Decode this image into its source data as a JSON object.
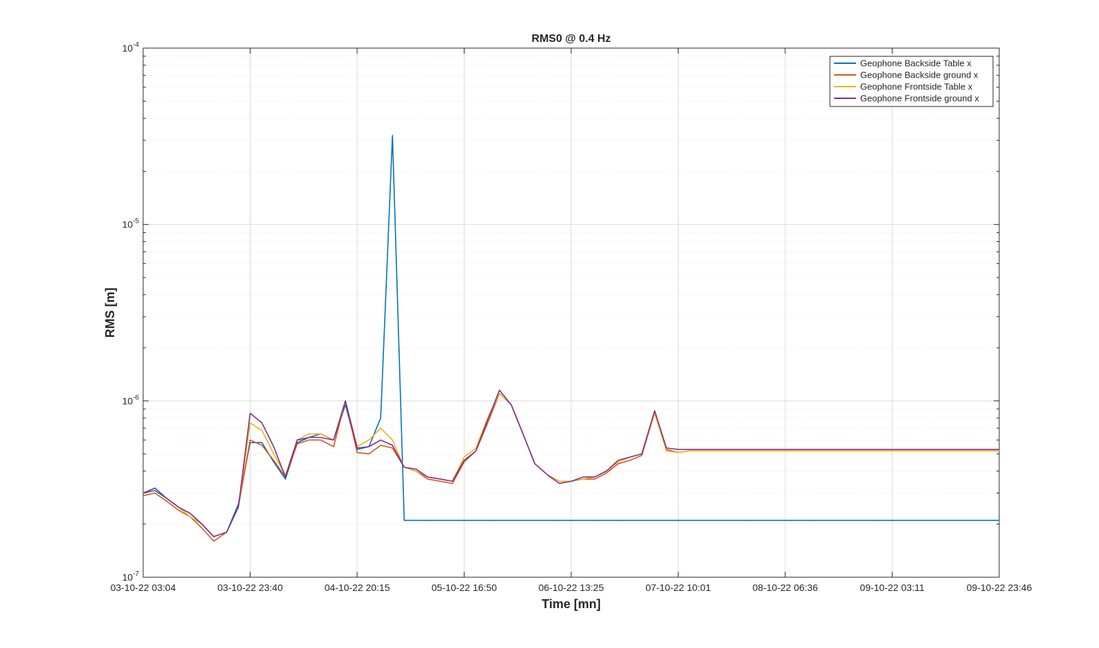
{
  "chart_data": {
    "type": "line",
    "title": "RMS0 @ 0.4 Hz",
    "xlabel": "Time [mn]",
    "ylabel": "RMS [m]",
    "yscale": "log",
    "ylim": [
      1e-07,
      0.0001
    ],
    "grid": true,
    "legend_location": "top-right",
    "x_tick_labels": [
      "03-10-22 03:04",
      "03-10-22 23:40",
      "04-10-22 20:15",
      "05-10-22 16:50",
      "06-10-22 13:25",
      "07-10-22 10:01",
      "08-10-22 06:36",
      "09-10-22 03:11",
      "09-10-22 23:46"
    ],
    "y_ticks": [
      {
        "base": "10",
        "exp": "-7",
        "value": 1e-07
      },
      {
        "base": "10",
        "exp": "-6",
        "value": 1e-06
      },
      {
        "base": "10",
        "exp": "-5",
        "value": 1e-05
      },
      {
        "base": "10",
        "exp": "-4",
        "value": 0.0001
      }
    ],
    "x_tick_count": 9,
    "series": [
      {
        "name": "Geophone Backside Table x",
        "color": "#0072BD",
        "x": [
          0,
          0.11,
          0.22,
          0.33,
          0.44,
          0.55,
          0.66,
          0.78,
          0.89,
          1.0,
          1.11,
          1.22,
          1.33,
          1.44,
          1.55,
          1.66,
          1.78,
          1.89,
          2.0,
          2.11,
          2.22,
          2.33,
          2.44,
          2.55,
          2.66,
          2.78,
          2.89,
          3.0,
          3.11,
          3.22,
          3.33,
          3.44,
          3.55,
          3.66,
          3.78,
          3.89,
          4.0,
          4.11,
          4.22,
          4.33,
          4.44,
          4.55,
          4.66,
          4.78,
          4.89,
          5.0,
          5.11,
          5.22,
          5.33,
          5.44,
          5.55,
          5.66,
          5.78,
          5.89,
          6.0,
          6.11,
          6.22,
          6.33,
          6.44,
          6.55,
          6.66,
          6.78,
          6.89,
          7.0,
          7.11,
          7.22,
          7.33,
          7.44,
          7.55,
          7.66,
          7.78,
          7.89,
          8.0
        ],
        "values": [
          3e-07,
          3.1e-07,
          2.8e-07,
          2.5e-07,
          2.3e-07,
          2e-07,
          1.7e-07,
          1.8e-07,
          2.6e-07,
          5.8e-07,
          5.8e-07,
          4.5e-07,
          3.6e-07,
          5.8e-07,
          6.2e-07,
          6.5e-07,
          6e-07,
          9.5e-07,
          5.3e-07,
          5.5e-07,
          8e-07,
          3.2e-05,
          2.1e-07,
          2.1e-07,
          2.1e-07,
          2.1e-07,
          2.1e-07,
          2.1e-07,
          2.1e-07,
          2.1e-07,
          2.1e-07,
          2.1e-07,
          2.1e-07,
          2.1e-07,
          2.1e-07,
          2.1e-07,
          2.1e-07,
          2.1e-07,
          2.1e-07,
          2.1e-07,
          2.1e-07,
          2.1e-07,
          2.1e-07,
          2.1e-07,
          2.1e-07,
          2.1e-07,
          2.1e-07,
          2.1e-07,
          2.1e-07,
          2.1e-07,
          2.1e-07,
          2.1e-07,
          2.1e-07,
          2.1e-07,
          2.1e-07,
          2.1e-07,
          2.1e-07,
          2.1e-07,
          2.1e-07,
          2.1e-07,
          2.1e-07,
          2.1e-07,
          2.1e-07,
          2.1e-07,
          2.1e-07,
          2.1e-07,
          2.1e-07,
          2.1e-07,
          2.1e-07,
          2.1e-07,
          2.1e-07,
          2.1e-07,
          2.1e-07
        ]
      },
      {
        "name": "Geophone Backside ground x",
        "color": "#D95319",
        "x": [
          0,
          0.11,
          0.22,
          0.33,
          0.44,
          0.55,
          0.66,
          0.78,
          0.89,
          1.0,
          1.11,
          1.22,
          1.33,
          1.44,
          1.55,
          1.66,
          1.78,
          1.89,
          2.0,
          2.11,
          2.22,
          2.33,
          2.44,
          2.55,
          2.66,
          2.78,
          2.89,
          3.0,
          3.11,
          3.22,
          3.33,
          3.44,
          3.55,
          3.66,
          3.78,
          3.89,
          4.0,
          4.11,
          4.22,
          4.33,
          4.44,
          4.55,
          4.66,
          4.78,
          4.89,
          5.0,
          5.11,
          5.22,
          5.33,
          5.44,
          5.55,
          5.66,
          5.78,
          5.89,
          6.0,
          6.11,
          6.22,
          6.33,
          6.44,
          6.55,
          6.66,
          6.78,
          6.89,
          7.0,
          7.11,
          7.22,
          7.33,
          7.44,
          7.55,
          7.66,
          7.78,
          7.89,
          8.0
        ],
        "values": [
          2.9e-07,
          3e-07,
          2.7e-07,
          2.4e-07,
          2.2e-07,
          1.9e-07,
          1.6e-07,
          1.8e-07,
          2.5e-07,
          6e-07,
          5.6e-07,
          4.6e-07,
          3.7e-07,
          5.7e-07,
          6e-07,
          6e-07,
          5.5e-07,
          1e-06,
          5.1e-07,
          5e-07,
          5.6e-07,
          5.4e-07,
          4.2e-07,
          4e-07,
          3.6e-07,
          3.5e-07,
          3.4e-07,
          4.5e-07,
          5.2e-07,
          7.5e-07,
          1.1e-06,
          9.5e-07,
          6.5e-07,
          4.4e-07,
          3.8e-07,
          3.5e-07,
          3.5e-07,
          3.6e-07,
          3.6e-07,
          3.9e-07,
          4.4e-07,
          4.6e-07,
          4.9e-07,
          8.5e-07,
          5.3e-07,
          5.1e-07,
          5.2e-07,
          5.2e-07,
          5.2e-07,
          5.2e-07,
          5.2e-07,
          5.2e-07,
          5.2e-07,
          5.2e-07,
          5.2e-07,
          5.2e-07,
          5.2e-07,
          5.2e-07,
          5.2e-07,
          5.2e-07,
          5.2e-07,
          5.2e-07,
          5.2e-07,
          5.2e-07,
          5.2e-07,
          5.2e-07,
          5.2e-07,
          5.2e-07,
          5.2e-07,
          5.2e-07,
          5.2e-07,
          5.2e-07,
          5.2e-07
        ]
      },
      {
        "name": "Geophone Frontside Table x",
        "color": "#EDB120",
        "x": [
          0,
          0.11,
          0.22,
          0.33,
          0.44,
          0.55,
          0.66,
          0.78,
          0.89,
          1.0,
          1.11,
          1.22,
          1.33,
          1.44,
          1.55,
          1.66,
          1.78,
          1.89,
          2.0,
          2.11,
          2.22,
          2.33,
          2.44,
          2.55,
          2.66,
          2.78,
          2.89,
          3.0,
          3.11,
          3.22,
          3.33,
          3.44,
          3.55,
          3.66,
          3.78,
          3.89,
          4.0,
          4.11,
          4.22,
          4.33,
          4.44,
          4.55,
          4.66,
          4.78,
          4.89,
          5.0,
          5.11,
          5.22,
          5.33,
          5.44,
          5.55,
          5.66,
          5.78,
          5.89,
          6.0,
          6.11,
          6.22,
          6.33,
          6.44,
          6.55,
          6.66,
          6.78,
          6.89,
          7.0,
          7.11,
          7.22,
          7.33,
          7.44,
          7.55,
          7.66,
          7.78,
          7.89,
          8.0
        ],
        "values": [
          3e-07,
          3.2e-07,
          2.8e-07,
          2.5e-07,
          2.2e-07,
          2e-07,
          1.7e-07,
          1.8e-07,
          2.5e-07,
          7.5e-07,
          6.8e-07,
          5e-07,
          3.8e-07,
          6e-07,
          6.5e-07,
          6.5e-07,
          6e-07,
          1e-06,
          5.5e-07,
          6e-07,
          7e-07,
          6e-07,
          4.2e-07,
          4e-07,
          3.7e-07,
          3.6e-07,
          3.5e-07,
          4.8e-07,
          5.4e-07,
          8e-07,
          1.1e-06,
          9.5e-07,
          6.5e-07,
          4.4e-07,
          3.8e-07,
          3.5e-07,
          3.5e-07,
          3.6e-07,
          3.7e-07,
          4e-07,
          4.5e-07,
          4.8e-07,
          5e-07,
          8.5e-07,
          5.2e-07,
          5.1e-07,
          5.2e-07,
          5.2e-07,
          5.2e-07,
          5.2e-07,
          5.2e-07,
          5.2e-07,
          5.2e-07,
          5.2e-07,
          5.2e-07,
          5.2e-07,
          5.2e-07,
          5.2e-07,
          5.2e-07,
          5.2e-07,
          5.2e-07,
          5.2e-07,
          5.2e-07,
          5.2e-07,
          5.2e-07,
          5.2e-07,
          5.2e-07,
          5.2e-07,
          5.2e-07,
          5.2e-07,
          5.2e-07,
          5.2e-07,
          5.2e-07
        ]
      },
      {
        "name": "Geophone Frontside ground x",
        "color": "#7E2F8E",
        "x": [
          0,
          0.11,
          0.22,
          0.33,
          0.44,
          0.55,
          0.66,
          0.78,
          0.89,
          1.0,
          1.11,
          1.22,
          1.33,
          1.44,
          1.55,
          1.66,
          1.78,
          1.89,
          2.0,
          2.11,
          2.22,
          2.33,
          2.44,
          2.55,
          2.66,
          2.78,
          2.89,
          3.0,
          3.11,
          3.22,
          3.33,
          3.44,
          3.55,
          3.66,
          3.78,
          3.89,
          4.0,
          4.11,
          4.22,
          4.33,
          4.44,
          4.55,
          4.66,
          4.78,
          4.89,
          5.0,
          5.11,
          5.22,
          5.33,
          5.44,
          5.55,
          5.66,
          5.78,
          5.89,
          6.0,
          6.11,
          6.22,
          6.33,
          6.44,
          6.55,
          6.66,
          6.78,
          6.89,
          7.0,
          7.11,
          7.22,
          7.33,
          7.44,
          7.55,
          7.66,
          7.78,
          7.89,
          8.0
        ],
        "values": [
          3e-07,
          3.2e-07,
          2.8e-07,
          2.5e-07,
          2.3e-07,
          2e-07,
          1.7e-07,
          1.8e-07,
          2.5e-07,
          8.5e-07,
          7.5e-07,
          5.5e-07,
          3.7e-07,
          6e-07,
          6.2e-07,
          6.2e-07,
          6e-07,
          1e-06,
          5.4e-07,
          5.5e-07,
          6e-07,
          5.6e-07,
          4.2e-07,
          4.1e-07,
          3.7e-07,
          3.6e-07,
          3.5e-07,
          4.6e-07,
          5.2e-07,
          7.8e-07,
          1.15e-06,
          9.5e-07,
          6.5e-07,
          4.4e-07,
          3.8e-07,
          3.4e-07,
          3.5e-07,
          3.7e-07,
          3.7e-07,
          4e-07,
          4.6e-07,
          4.8e-07,
          5e-07,
          8.8e-07,
          5.4e-07,
          5.3e-07,
          5.3e-07,
          5.3e-07,
          5.3e-07,
          5.3e-07,
          5.3e-07,
          5.3e-07,
          5.3e-07,
          5.3e-07,
          5.3e-07,
          5.3e-07,
          5.3e-07,
          5.3e-07,
          5.3e-07,
          5.3e-07,
          5.3e-07,
          5.3e-07,
          5.3e-07,
          5.3e-07,
          5.3e-07,
          5.3e-07,
          5.3e-07,
          5.3e-07,
          5.3e-07,
          5.3e-07,
          5.3e-07,
          5.3e-07,
          5.3e-07
        ]
      }
    ]
  }
}
